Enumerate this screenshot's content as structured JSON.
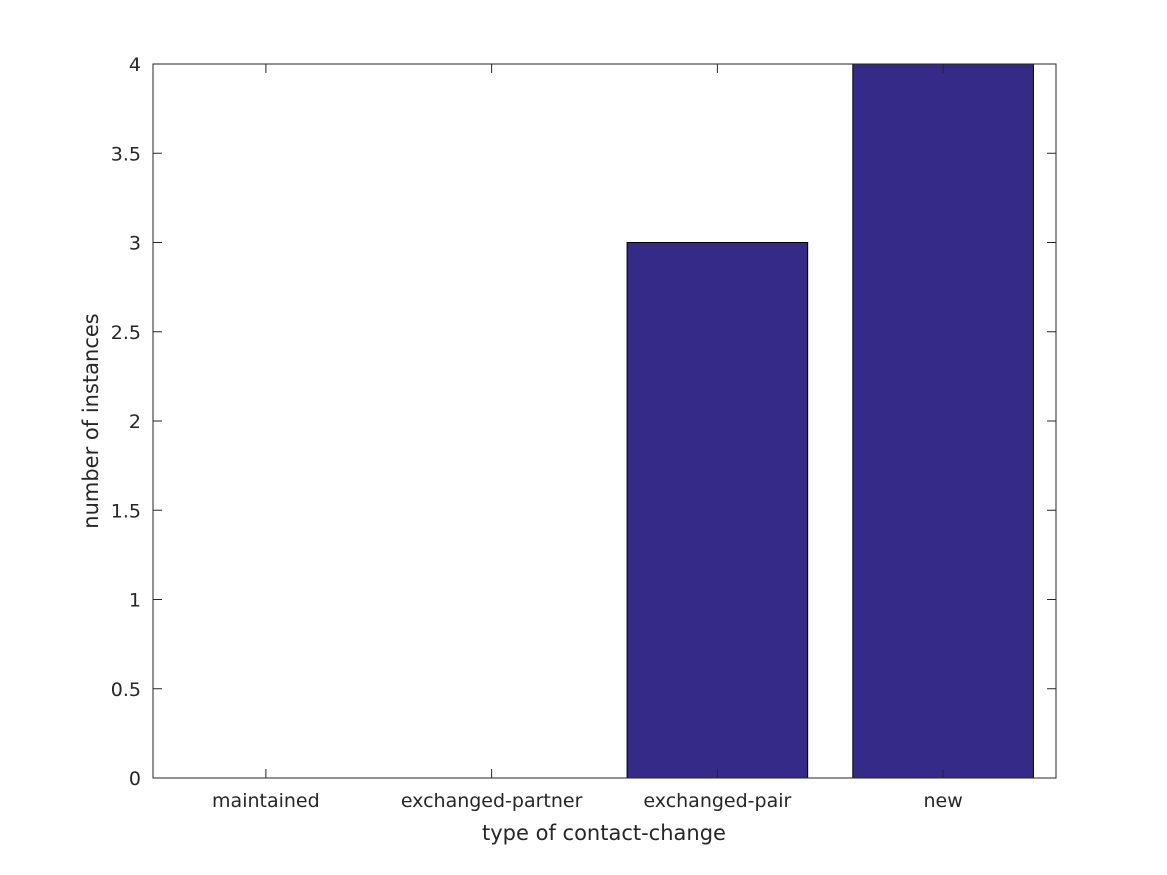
{
  "chart_data": {
    "type": "bar",
    "title": "",
    "xlabel": "type of contact-change",
    "ylabel": "number of instances",
    "categories": [
      "maintained",
      "exchanged-partner",
      "exchanged-pair",
      "new"
    ],
    "values": [
      0,
      0,
      3,
      4
    ],
    "ylim": [
      0,
      4
    ],
    "yticks": [
      0,
      0.5,
      1,
      1.5,
      2,
      2.5,
      3,
      3.5,
      4
    ],
    "ytick_labels": [
      "0",
      "0.5",
      "1",
      "1.5",
      "2",
      "2.5",
      "3",
      "3.5",
      "4"
    ],
    "grid": false,
    "legend": "none",
    "colors": {
      "bar": "#352a87",
      "axis": "#262626"
    }
  }
}
